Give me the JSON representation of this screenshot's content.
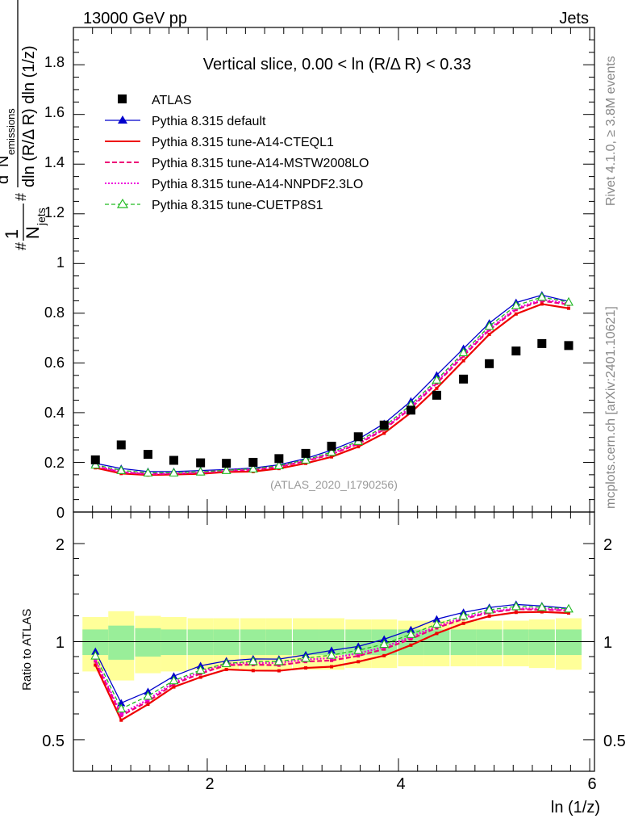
{
  "header": {
    "left": "13000 GeV pp",
    "right": "Jets"
  },
  "side_labels": {
    "rivet": "Rivet 4.1.0, ≥ 3.8M events",
    "mcplots": "mcplots.cern.ch [arXiv:2401.10621]"
  },
  "main_panel": {
    "ylabel_parts": {
      "hash": "#",
      "one": "1",
      "njets": "N",
      "njets_sub": "jets",
      "hash2": "#",
      "d2": "d",
      "d2_sup": "2",
      "nem": "N",
      "nem_sub": "emissions",
      "denom": "dln (R/Δ R) dln (1/z)"
    },
    "ytick_labels": [
      "0",
      "0.2",
      "0.4",
      "0.6",
      "0.8",
      "1",
      "1.2",
      "1.4",
      "1.6",
      "1.8"
    ],
    "slice_title": "Vertical slice, 0.00 < ln (R/Δ R) < 0.33",
    "analysis_tag": "(ATLAS_2020_I1790256)"
  },
  "ratio_panel": {
    "ylabel": "Ratio to ATLAS",
    "ytick_labels_left": [
      "0.5",
      "1",
      "2"
    ],
    "ytick_labels_right": [
      "0.5",
      "1",
      "2"
    ]
  },
  "x_axis": {
    "label": "ln (1/z)",
    "tick_labels": [
      "2",
      "4",
      "6"
    ]
  },
  "legend": [
    {
      "label": "ATLAS",
      "color": "#000000",
      "style": "square"
    },
    {
      "label": "Pythia 8.315 default",
      "color": "#0000cc",
      "style": "solid-triangle"
    },
    {
      "label": "Pythia 8.315 tune-A14-CTEQL1",
      "color": "#ee0000",
      "style": "solid"
    },
    {
      "label": "Pythia 8.315 tune-A14-MSTW2008LO",
      "color": "#ee0077",
      "style": "dashed"
    },
    {
      "label": "Pythia 8.315 tune-A14-NNPDF2.3LO",
      "color": "#ee00dd",
      "style": "dotted"
    },
    {
      "label": "Pythia 8.315 tune-CUETP8S1",
      "color": "#22bb22",
      "style": "dashed-open-triangle"
    }
  ],
  "chart_data": {
    "type": "line",
    "title": "Vertical slice, 0.00 < ln (R/Δ R) < 0.33",
    "xlabel": "ln (1/z)",
    "ylabel": "1/N_jets d²N_emissions / dln(R/ΔR) dln(1/z)",
    "xlim": [
      0.6,
      6.05
    ],
    "ylim": [
      0,
      1.95
    ],
    "ratio_ylim": [
      0.4,
      2.5
    ],
    "ratio_scale": "log",
    "x": [
      0.83,
      1.1,
      1.38,
      1.65,
      1.93,
      2.2,
      2.48,
      2.75,
      3.03,
      3.3,
      3.58,
      3.85,
      4.13,
      4.4,
      4.68,
      4.95,
      5.23,
      5.5,
      5.78
    ],
    "data": {
      "name": "ATLAS",
      "values": [
        0.21,
        0.27,
        0.232,
        0.208,
        0.198,
        0.196,
        0.2,
        0.215,
        0.236,
        0.265,
        0.303,
        0.35,
        0.41,
        0.47,
        0.535,
        0.597,
        0.648,
        0.678,
        0.67
      ],
      "band_inner": [
        0.09,
        0.12,
        0.1,
        0.09,
        0.09,
        0.09,
        0.09,
        0.09,
        0.09,
        0.09,
        0.09,
        0.09,
        0.09,
        0.09,
        0.09,
        0.09,
        0.09,
        0.09,
        0.09
      ],
      "band_outer": [
        0.19,
        0.24,
        0.2,
        0.19,
        0.18,
        0.18,
        0.18,
        0.18,
        0.18,
        0.18,
        0.17,
        0.17,
        0.16,
        0.16,
        0.16,
        0.16,
        0.16,
        0.17,
        0.18
      ]
    },
    "series": [
      {
        "name": "Pythia 8.315 default",
        "color": "#0000cc",
        "dash": "",
        "marker": "solid-triangle",
        "values": [
          0.196,
          0.175,
          0.163,
          0.163,
          0.167,
          0.171,
          0.177,
          0.19,
          0.215,
          0.249,
          0.293,
          0.356,
          0.446,
          0.551,
          0.658,
          0.76,
          0.843,
          0.873,
          0.848
        ]
      },
      {
        "name": "Pythia 8.315 tune-A14-CTEQL1",
        "color": "#ee0000",
        "dash": "",
        "marker": "small-square",
        "values": [
          0.178,
          0.155,
          0.149,
          0.151,
          0.154,
          0.161,
          0.163,
          0.175,
          0.196,
          0.222,
          0.263,
          0.317,
          0.4,
          0.498,
          0.609,
          0.715,
          0.797,
          0.837,
          0.82
        ]
      },
      {
        "name": "Pythia 8.315 tune-A14-MSTW2008LO",
        "color": "#ee0077",
        "dash": "6,3",
        "marker": "small-square",
        "values": [
          0.183,
          0.16,
          0.152,
          0.154,
          0.158,
          0.166,
          0.17,
          0.182,
          0.205,
          0.232,
          0.274,
          0.332,
          0.418,
          0.518,
          0.628,
          0.733,
          0.815,
          0.85,
          0.835
        ]
      },
      {
        "name": "Pythia 8.315 tune-A14-NNPDF2.3LO",
        "color": "#ee00dd",
        "dash": "2,2",
        "marker": "small-square",
        "values": [
          0.185,
          0.162,
          0.154,
          0.156,
          0.16,
          0.168,
          0.172,
          0.185,
          0.208,
          0.236,
          0.279,
          0.337,
          0.424,
          0.524,
          0.634,
          0.738,
          0.82,
          0.855,
          0.84
        ]
      },
      {
        "name": "Pythia 8.315 tune-CUETP8S1",
        "color": "#22bb22",
        "dash": "5,3",
        "marker": "open-triangle",
        "values": [
          0.19,
          0.168,
          0.158,
          0.158,
          0.162,
          0.168,
          0.174,
          0.187,
          0.21,
          0.241,
          0.285,
          0.344,
          0.432,
          0.532,
          0.642,
          0.748,
          0.831,
          0.865,
          0.845
        ]
      }
    ]
  }
}
